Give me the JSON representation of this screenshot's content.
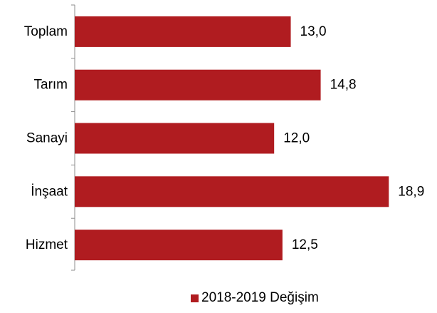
{
  "chart_data": {
    "type": "bar",
    "orientation": "horizontal",
    "title": "",
    "xlabel": "",
    "ylabel": "",
    "categories": [
      "Toplam",
      "Tarım",
      "Sanayi",
      "İnşaat",
      "Hizmet"
    ],
    "series": [
      {
        "name": "2018-2019  Değişim",
        "values": [
          13.0,
          14.8,
          12.0,
          18.9,
          12.5
        ],
        "labels": [
          "13,0",
          "14,8",
          "12,0",
          "18,9",
          "12,5"
        ],
        "color": "#b01c20"
      }
    ],
    "xlim": [
      0,
      21.2
    ],
    "grid": false,
    "value_axis_visible": false,
    "legend_position": "bottom"
  }
}
